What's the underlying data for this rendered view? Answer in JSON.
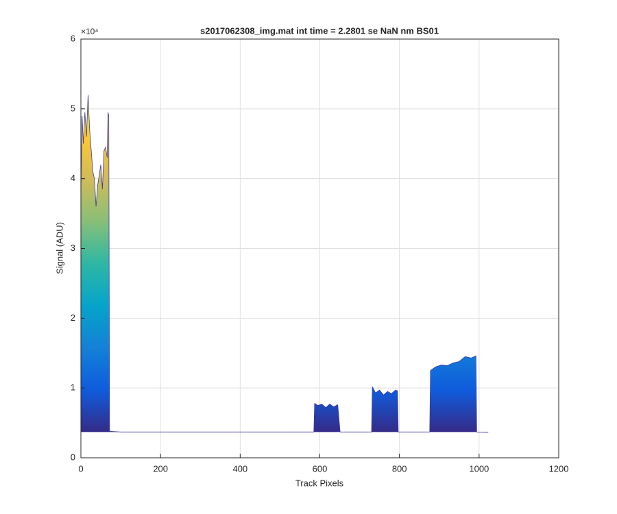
{
  "chart_data": {
    "type": "area",
    "title": "s2017062308_img.mat int time = 2.2801 se  NaN nm BS01",
    "xlabel": "Track Pixels",
    "ylabel": "Signal (ADU)",
    "y_exponent_label": "×10⁴",
    "x": [
      0,
      3,
      6,
      10,
      14,
      18,
      22,
      26,
      30,
      34,
      38,
      42,
      46,
      50,
      54,
      58,
      62,
      66,
      68,
      70,
      72,
      100,
      585,
      587,
      595,
      605,
      615,
      625,
      635,
      645,
      651,
      653,
      730,
      732,
      740,
      750,
      760,
      770,
      780,
      790,
      795,
      797,
      876,
      878,
      890,
      905,
      920,
      935,
      950,
      965,
      980,
      992,
      994,
      1023
    ],
    "values": [
      38000,
      49000,
      45000,
      49500,
      46000,
      52000,
      47000,
      44000,
      41000,
      40000,
      36000,
      39000,
      40500,
      42000,
      38500,
      44000,
      44500,
      43000,
      49500,
      49000,
      3800,
      3700,
      3700,
      7800,
      7500,
      7700,
      7200,
      7700,
      7300,
      7600,
      3700,
      3700,
      3700,
      10200,
      9300,
      9700,
      9000,
      9500,
      9200,
      9700,
      9600,
      3700,
      3700,
      12500,
      13000,
      13300,
      13200,
      13600,
      13800,
      14500,
      14300,
      14600,
      3700,
      3650
    ],
    "baseline": 3700,
    "colormap": [
      "#352a87",
      "#0f5cdd",
      "#1481d6",
      "#06a4ca",
      "#2eb7a4",
      "#87bf77",
      "#d1bb59",
      "#fec832",
      "#f9fb0e"
    ],
    "clim": [
      3700,
      52000
    ],
    "xlim": [
      0,
      1200
    ],
    "xticks": [
      0,
      200,
      400,
      600,
      800,
      1000,
      1200
    ],
    "ylim": [
      0,
      60000
    ],
    "yticks": [
      {
        "value": 0,
        "label": "0"
      },
      {
        "value": 10000,
        "label": "1"
      },
      {
        "value": 20000,
        "label": "2"
      },
      {
        "value": 30000,
        "label": "3"
      },
      {
        "value": 40000,
        "label": "4"
      },
      {
        "value": 50000,
        "label": "5"
      },
      {
        "value": 60000,
        "label": "6"
      }
    ],
    "grid": true
  }
}
